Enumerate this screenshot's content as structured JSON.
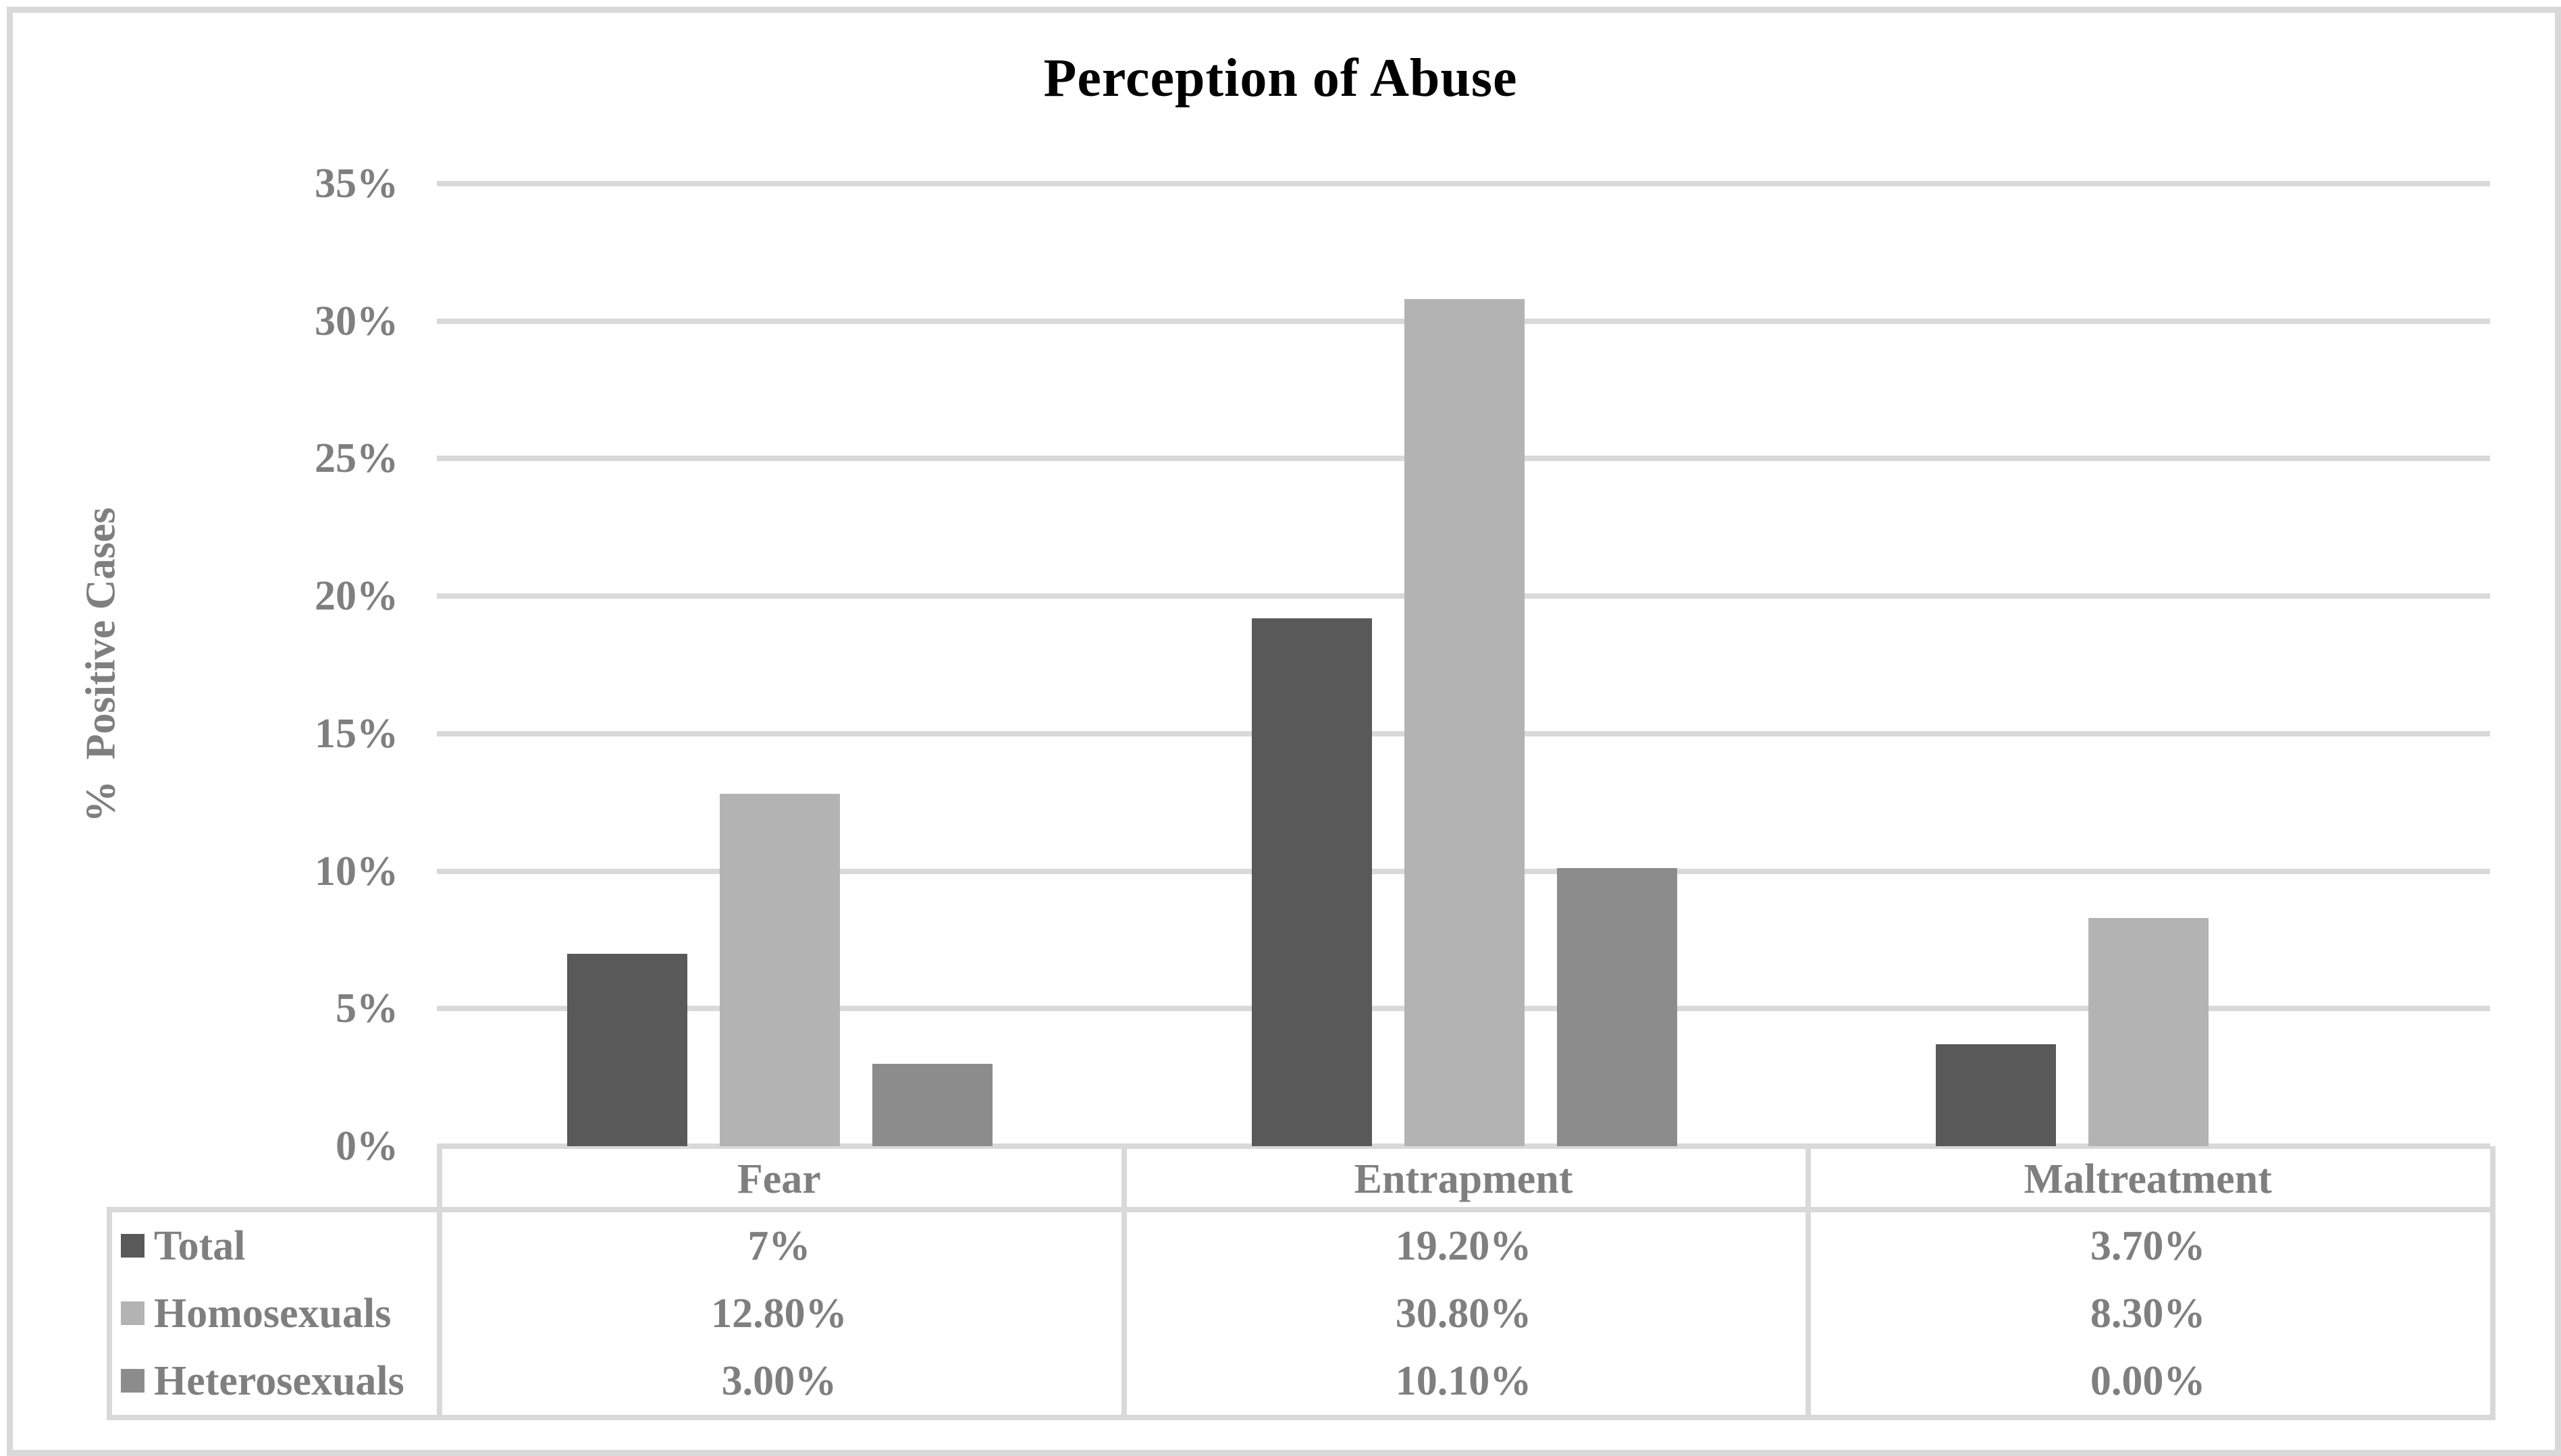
{
  "window": {
    "background": "#ffffff",
    "frame_border_color": "#d9d9d9"
  },
  "colors": {
    "title_text": "#000000",
    "axis_text": "#7f7f7f",
    "gridline": "#d9d9d9",
    "table_border": "#d9d9d9",
    "series_total": "#595959",
    "series_homosexuals": "#b3b3b3",
    "series_heterosexuals": "#8c8c8c"
  },
  "chart_data": {
    "type": "bar",
    "title": "Perception of Abuse",
    "ylabel": "%  Positive Cases",
    "xlabel": "",
    "ylim": [
      0,
      35
    ],
    "ytick_step": 5,
    "yticks": [
      "0%",
      "5%",
      "10%",
      "15%",
      "20%",
      "25%",
      "30%",
      "35%"
    ],
    "grid": true,
    "legend_position": "data-table-left-column",
    "categories": [
      "Fear",
      "Entrapment",
      "Maltreatment"
    ],
    "series": [
      {
        "name": "Total",
        "color": "#595959",
        "values": [
          7,
          19.2,
          3.7
        ],
        "display_values": [
          "7%",
          "19.20%",
          "3.70%"
        ]
      },
      {
        "name": "Homosexuals",
        "color": "#b3b3b3",
        "values": [
          12.8,
          30.8,
          8.3
        ],
        "display_values": [
          "12.80%",
          "30.80%",
          "8.30%"
        ]
      },
      {
        "name": "Heterosexuals",
        "color": "#8c8c8c",
        "values": [
          3.0,
          10.1,
          0.0
        ],
        "display_values": [
          "3.00%",
          "10.10%",
          "0.00%"
        ]
      }
    ]
  }
}
